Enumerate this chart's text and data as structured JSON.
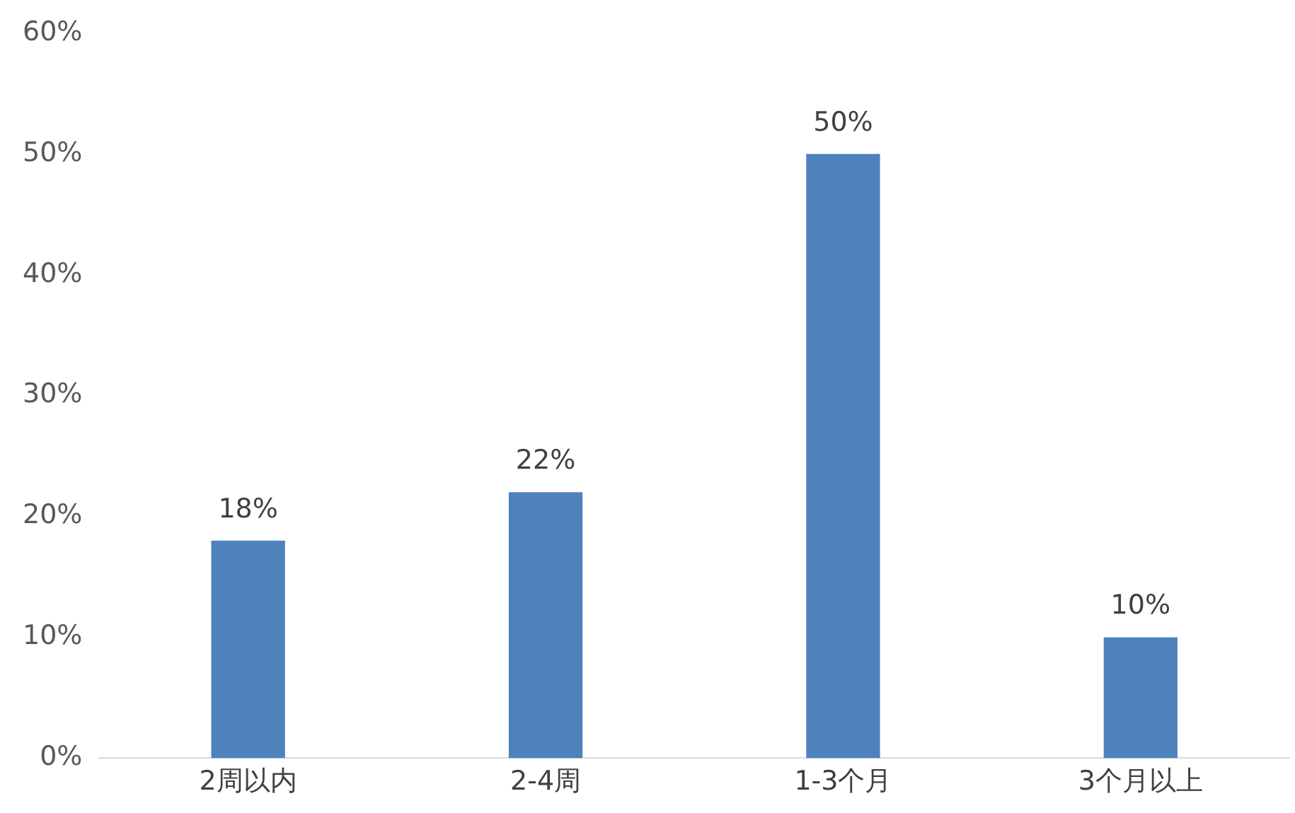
{
  "chart_data": {
    "type": "bar",
    "categories": [
      "2周以内",
      "2-4周",
      "1-3个月",
      "3个月以上"
    ],
    "values": [
      18,
      22,
      50,
      10
    ],
    "color": "#4f81bd",
    "value_labels": [
      "18%",
      "22%",
      "50%",
      "10%"
    ],
    "ylim": [
      0,
      60
    ],
    "yticks": [
      {
        "value": 0,
        "label": "0%"
      },
      {
        "value": 10,
        "label": "10%"
      },
      {
        "value": 20,
        "label": "20%"
      },
      {
        "value": 30,
        "label": "30%"
      },
      {
        "value": 40,
        "label": "40%"
      },
      {
        "value": 50,
        "label": "50%"
      },
      {
        "value": 60,
        "label": "60%"
      }
    ],
    "grid": false,
    "legend": false
  }
}
